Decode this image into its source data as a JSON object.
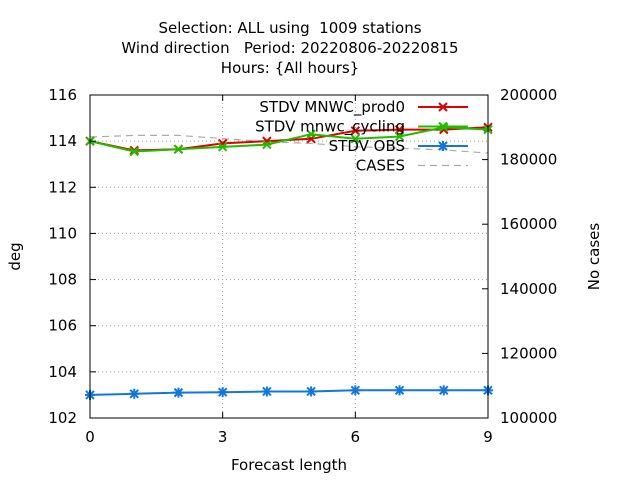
{
  "chart_data": {
    "type": "line",
    "title_lines": [
      "Selection: ALL using  1009 stations",
      "Wind direction   Period: 20220806-20220815",
      "Hours: {All hours}"
    ],
    "xlabel": "Forecast length",
    "ylabel": "deg",
    "y2label": "No cases",
    "xlim": [
      0,
      9
    ],
    "xticks": [
      0,
      3,
      6,
      9
    ],
    "ylim": [
      102,
      116
    ],
    "yticks": [
      102,
      104,
      106,
      108,
      110,
      112,
      114,
      116
    ],
    "y2lim": [
      100000,
      200000
    ],
    "y2ticks": [
      100000,
      120000,
      140000,
      160000,
      180000,
      200000
    ],
    "grid": true,
    "legend_position": "top-right",
    "x": [
      0,
      1,
      2,
      3,
      4,
      5,
      6,
      7,
      8,
      9
    ],
    "series": [
      {
        "name": "STDV MNWC_prod0",
        "color": "#dd0000",
        "marker": "x",
        "axis": "y",
        "values": [
          114.0,
          113.6,
          113.65,
          113.9,
          114.0,
          114.1,
          114.45,
          114.5,
          114.5,
          114.6
        ]
      },
      {
        "name": "STDV mnwc_cycling",
        "color": "#22bb00",
        "marker": "x",
        "axis": "y",
        "values": [
          114.0,
          113.55,
          113.65,
          113.75,
          113.85,
          114.3,
          114.1,
          114.2,
          114.6,
          114.5
        ]
      },
      {
        "name": "STDV OBS",
        "color": "#1177dd",
        "marker": "star",
        "axis": "y",
        "values": [
          103.0,
          103.05,
          103.1,
          103.12,
          103.15,
          103.15,
          103.2,
          103.2,
          103.2,
          103.2
        ]
      },
      {
        "name": "CASES",
        "color": "#aaaaaa",
        "marker": "none",
        "dashed": true,
        "axis": "y2",
        "values": [
          187000,
          187500,
          187500,
          186500,
          185500,
          185000,
          184000,
          183500,
          183000,
          182000
        ]
      }
    ]
  }
}
